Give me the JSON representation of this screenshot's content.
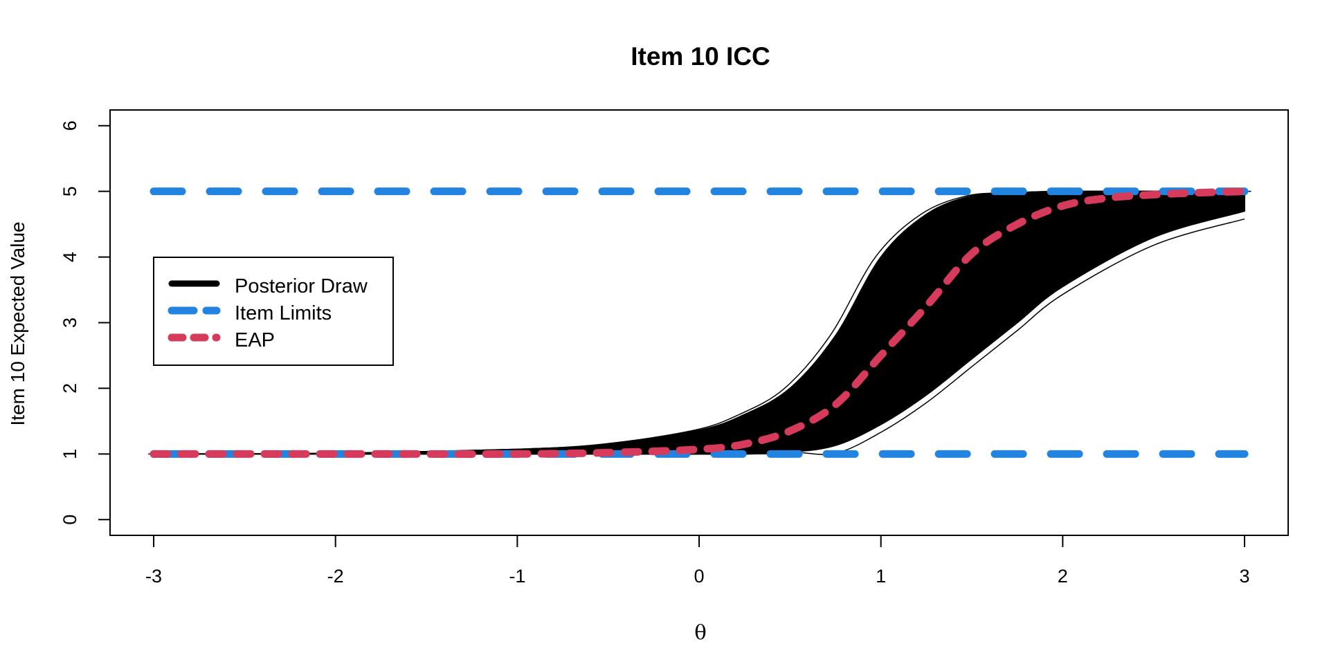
{
  "chart_data": {
    "type": "line",
    "title": "Item 10 ICC",
    "xlabel": "θ",
    "ylabel": "Item 10 Expected Value",
    "xlim": [
      -3.24,
      3.24
    ],
    "ylim": [
      -0.24,
      6.24
    ],
    "x_ticks": [
      "-3",
      "-2",
      "-1",
      "0",
      "1",
      "2",
      "3"
    ],
    "y_ticks": [
      "0",
      "1",
      "2",
      "3",
      "4",
      "5",
      "6"
    ],
    "grid": false,
    "legend_position": "left",
    "legend": [
      {
        "label": "Posterior Draw",
        "color": "#000000",
        "style": "solid"
      },
      {
        "label": "Item Limits",
        "color": "#2283E0",
        "style": "dashed"
      },
      {
        "label": "EAP",
        "color": "#D63B5B",
        "style": "dashed"
      }
    ],
    "series": [
      {
        "name": "Posterior Draw",
        "kind": "band",
        "color": "#000000",
        "x": [
          -3.0,
          -2.0,
          -1.0,
          -0.5,
          0.0,
          0.25,
          0.5,
          0.75,
          1.0,
          1.25,
          1.5,
          1.75,
          2.0,
          2.5,
          3.0
        ],
        "upper": [
          1.0,
          1.01,
          1.07,
          1.15,
          1.36,
          1.6,
          2.0,
          2.8,
          4.0,
          4.65,
          4.93,
          4.98,
          5.0,
          5.0,
          5.0
        ],
        "lower": [
          1.0,
          1.0,
          1.0,
          1.0,
          1.0,
          1.0,
          1.03,
          1.13,
          1.45,
          1.9,
          2.45,
          3.0,
          3.55,
          4.3,
          4.7
        ]
      },
      {
        "name": "Item Limits",
        "color": "#2283E0",
        "lines": [
          {
            "x": [
              -3,
              3
            ],
            "y": [
              5,
              5
            ]
          },
          {
            "x": [
              -3,
              3
            ],
            "y": [
              1,
              1
            ]
          }
        ]
      },
      {
        "name": "EAP",
        "color": "#D63B5B",
        "x": [
          -3.0,
          -2.0,
          -1.0,
          -0.5,
          0.0,
          0.25,
          0.5,
          0.75,
          1.0,
          1.25,
          1.5,
          1.75,
          2.0,
          2.25,
          2.5,
          2.75,
          3.0
        ],
        "y": [
          1.0,
          1.0,
          1.0,
          1.02,
          1.07,
          1.15,
          1.35,
          1.75,
          2.5,
          3.25,
          4.05,
          4.5,
          4.78,
          4.9,
          4.95,
          4.98,
          5.0
        ]
      }
    ]
  }
}
